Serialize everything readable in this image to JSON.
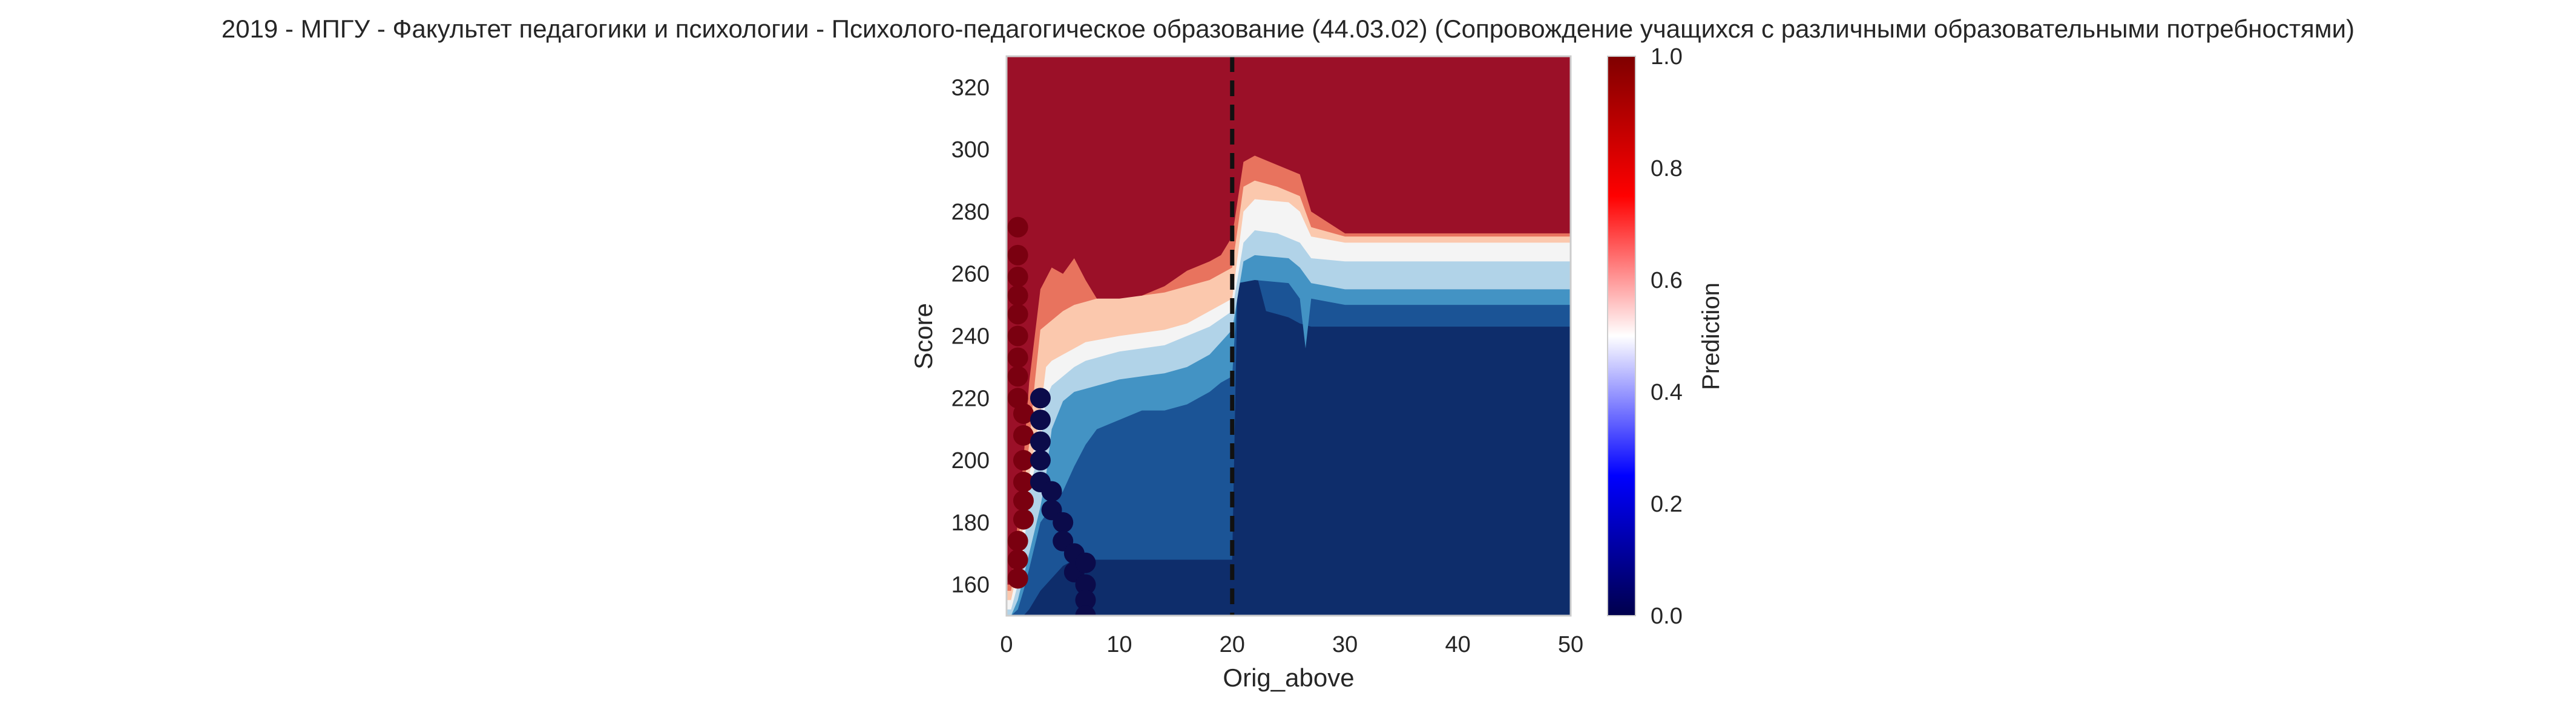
{
  "chart_data": {
    "type": "heatmap",
    "title": "2019 - МПГУ - Факультет педагогики и психологии - Психолого-педагогическое образование (44.03.02) (Сопровождение учащихся с различными образовательными потребностями)",
    "xlabel": "Orig_above",
    "ylabel": "Score",
    "xlim": [
      0,
      50
    ],
    "ylim": [
      150,
      330
    ],
    "x_ticks": [
      0,
      10,
      20,
      30,
      40,
      50
    ],
    "y_ticks": [
      160,
      180,
      200,
      220,
      240,
      260,
      280,
      300,
      320
    ],
    "grid": false,
    "colorbar": {
      "label": "Prediction",
      "range": [
        0,
        1
      ],
      "ticks": [
        "0.0",
        "0.2",
        "0.4",
        "0.6",
        "0.8",
        "1.0"
      ],
      "colormap": "seismic"
    },
    "contour_levels": [
      0.0,
      0.125,
      0.25,
      0.375,
      0.5,
      0.625,
      0.75,
      0.875,
      1.0
    ],
    "band_colors": [
      "#0e2d6b",
      "#1b5496",
      "#4393c4",
      "#b1d3e8",
      "#f4f4f4",
      "#fbc8ad",
      "#e8735e",
      "#9b1028"
    ],
    "threshold_line": {
      "x": 20,
      "style": "dashed",
      "color": "#111111"
    },
    "boundaries": [
      {
        "level": 0.125,
        "points": [
          [
            0.4,
            150
          ],
          [
            1,
            150
          ],
          [
            1.5,
            150
          ],
          [
            2,
            152
          ],
          [
            3,
            158
          ],
          [
            4,
            162
          ],
          [
            5,
            166
          ],
          [
            6,
            168
          ],
          [
            7,
            168
          ],
          [
            20,
            168
          ],
          [
            20.5,
            262
          ],
          [
            21,
            265
          ],
          [
            22,
            262
          ],
          [
            23,
            248
          ],
          [
            24,
            247
          ],
          [
            25,
            246
          ],
          [
            26,
            244
          ],
          [
            27,
            243
          ],
          [
            50,
            243
          ]
        ]
      },
      {
        "level": 0.25,
        "points": [
          [
            0.4,
            150
          ],
          [
            1,
            152
          ],
          [
            1.5,
            158
          ],
          [
            2,
            165
          ],
          [
            3,
            180
          ],
          [
            4,
            185
          ],
          [
            5,
            190
          ],
          [
            6,
            198
          ],
          [
            7,
            205
          ],
          [
            8,
            210
          ],
          [
            10,
            213
          ],
          [
            12,
            216
          ],
          [
            14,
            216
          ],
          [
            16,
            218
          ],
          [
            17,
            220
          ],
          [
            18,
            222
          ],
          [
            19,
            225
          ],
          [
            20,
            227
          ],
          [
            20.5,
            257
          ],
          [
            22,
            258
          ],
          [
            25,
            257
          ],
          [
            26,
            252
          ],
          [
            26.5,
            236
          ],
          [
            27,
            252
          ],
          [
            30,
            250
          ],
          [
            50,
            250
          ]
        ]
      },
      {
        "level": 0.375,
        "points": [
          [
            0.4,
            150
          ],
          [
            1,
            155
          ],
          [
            2,
            170
          ],
          [
            3,
            185
          ],
          [
            3.5,
            195
          ],
          [
            4,
            210
          ],
          [
            5,
            219
          ],
          [
            6,
            222
          ],
          [
            7,
            223
          ],
          [
            8,
            224
          ],
          [
            9,
            225
          ],
          [
            10,
            226
          ],
          [
            12,
            227
          ],
          [
            14,
            228
          ],
          [
            16,
            230
          ],
          [
            18,
            234
          ],
          [
            19,
            238
          ],
          [
            20,
            242
          ],
          [
            21,
            264
          ],
          [
            22,
            266
          ],
          [
            25,
            265
          ],
          [
            26,
            262
          ],
          [
            27,
            257
          ],
          [
            30,
            255
          ],
          [
            50,
            255
          ]
        ]
      },
      {
        "level": 0.5,
        "points": [
          [
            0.4,
            152
          ],
          [
            1,
            160
          ],
          [
            1.5,
            170
          ],
          [
            2,
            190
          ],
          [
            3,
            205
          ],
          [
            3.5,
            220
          ],
          [
            4,
            224
          ],
          [
            5,
            227
          ],
          [
            6,
            230
          ],
          [
            7,
            232
          ],
          [
            8,
            233
          ],
          [
            9,
            234
          ],
          [
            10,
            235
          ],
          [
            12,
            236
          ],
          [
            14,
            237
          ],
          [
            16,
            240
          ],
          [
            18,
            243
          ],
          [
            20,
            248
          ],
          [
            21,
            270
          ],
          [
            22,
            274
          ],
          [
            24,
            273
          ],
          [
            26,
            270
          ],
          [
            27,
            265
          ],
          [
            30,
            264
          ],
          [
            50,
            264
          ]
        ]
      },
      {
        "level": 0.625,
        "points": [
          [
            0.4,
            155
          ],
          [
            1,
            165
          ],
          [
            1.5,
            180
          ],
          [
            2,
            195
          ],
          [
            3,
            215
          ],
          [
            3.5,
            230
          ],
          [
            4,
            232
          ],
          [
            5,
            234
          ],
          [
            6,
            236
          ],
          [
            7,
            238
          ],
          [
            10,
            240
          ],
          [
            12,
            241
          ],
          [
            14,
            242
          ],
          [
            16,
            244
          ],
          [
            18,
            248
          ],
          [
            20,
            252
          ],
          [
            21,
            280
          ],
          [
            22,
            284
          ],
          [
            25,
            283
          ],
          [
            26,
            280
          ],
          [
            27,
            272
          ],
          [
            30,
            270
          ],
          [
            50,
            270
          ]
        ]
      },
      {
        "level": 0.75,
        "points": [
          [
            0.4,
            158
          ],
          [
            1,
            172
          ],
          [
            1.5,
            190
          ],
          [
            2,
            205
          ],
          [
            2.5,
            225
          ],
          [
            3,
            242
          ],
          [
            4,
            245
          ],
          [
            5,
            248
          ],
          [
            6,
            250
          ],
          [
            7,
            251
          ],
          [
            8,
            252
          ],
          [
            10,
            253
          ],
          [
            12,
            253
          ],
          [
            14,
            254
          ],
          [
            16,
            256
          ],
          [
            18,
            258
          ],
          [
            20,
            262
          ],
          [
            21,
            288
          ],
          [
            22,
            290
          ],
          [
            24,
            288
          ],
          [
            26,
            285
          ],
          [
            27,
            275
          ],
          [
            30,
            272
          ],
          [
            50,
            272
          ]
        ]
      },
      {
        "level": 0.875,
        "points": [
          [
            0.4,
            160
          ],
          [
            1,
            180
          ],
          [
            1.5,
            200
          ],
          [
            2,
            225
          ],
          [
            2.5,
            240
          ],
          [
            3,
            255
          ],
          [
            4,
            262
          ],
          [
            5,
            260
          ],
          [
            6,
            265
          ],
          [
            7,
            258
          ],
          [
            8,
            252
          ],
          [
            10,
            252
          ],
          [
            12,
            253
          ],
          [
            14,
            256
          ],
          [
            16,
            261
          ],
          [
            18,
            264
          ],
          [
            19,
            266
          ],
          [
            20,
            272
          ],
          [
            21,
            296
          ],
          [
            22,
            298
          ],
          [
            24,
            295
          ],
          [
            26,
            292
          ],
          [
            27,
            280
          ],
          [
            30,
            273
          ],
          [
            50,
            273
          ]
        ]
      }
    ],
    "points_high": {
      "label_value": 1.0,
      "color": "#7a0010",
      "points": [
        [
          1,
          275
        ],
        [
          1,
          266
        ],
        [
          1,
          259
        ],
        [
          1,
          253
        ],
        [
          1,
          247
        ],
        [
          1,
          240
        ],
        [
          1,
          233
        ],
        [
          1,
          227
        ],
        [
          1,
          220
        ],
        [
          1.5,
          215
        ],
        [
          1.5,
          208
        ],
        [
          1.5,
          200
        ],
        [
          1.5,
          193
        ],
        [
          1.5,
          187
        ],
        [
          1.5,
          181
        ],
        [
          1,
          174
        ],
        [
          1,
          168
        ],
        [
          1,
          162
        ]
      ]
    },
    "points_low": {
      "label_value": 0.0,
      "color": "#0b0b4a",
      "points": [
        [
          3,
          220
        ],
        [
          3,
          213
        ],
        [
          3,
          206
        ],
        [
          3,
          200
        ],
        [
          3,
          193
        ],
        [
          4,
          190
        ],
        [
          4,
          184
        ],
        [
          5,
          180
        ],
        [
          5,
          174
        ],
        [
          6,
          170
        ],
        [
          6,
          164
        ],
        [
          7,
          167
        ],
        [
          7,
          160
        ],
        [
          7,
          155
        ],
        [
          7,
          150
        ]
      ]
    }
  }
}
